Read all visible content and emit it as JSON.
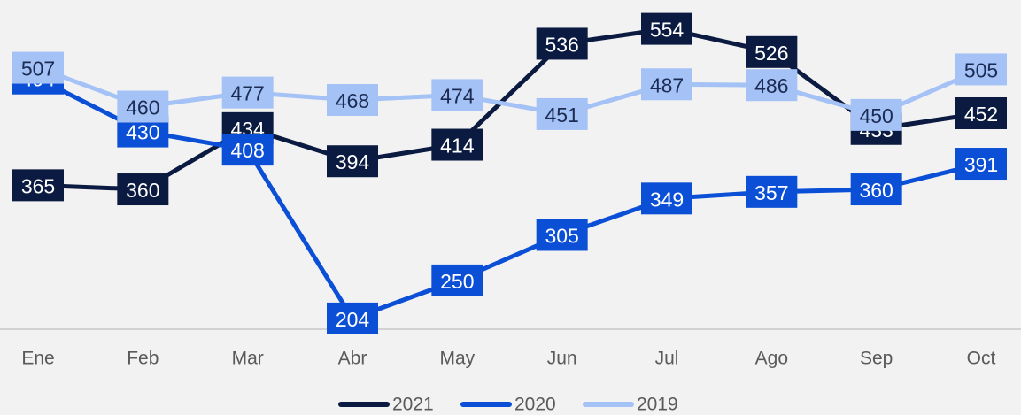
{
  "chart_data": {
    "type": "line",
    "categories": [
      "Ene",
      "Feb",
      "Mar",
      "Abr",
      "May",
      "Jun",
      "Jul",
      "Ago",
      "Sep",
      "Oct"
    ],
    "series": [
      {
        "name": "2021",
        "color": "#0b1a40",
        "values": [
          365,
          360,
          434,
          394,
          414,
          536,
          554,
          526,
          433,
          452
        ]
      },
      {
        "name": "2020",
        "color": "#0b4fd6",
        "values": [
          494,
          430,
          408,
          204,
          250,
          305,
          349,
          357,
          360,
          391
        ]
      },
      {
        "name": "2019",
        "color": "#a4c2f6",
        "values": [
          507,
          460,
          477,
          468,
          474,
          451,
          487,
          486,
          450,
          505
        ]
      }
    ],
    "ylim": [
      190,
      560
    ],
    "legend": "bottom"
  }
}
